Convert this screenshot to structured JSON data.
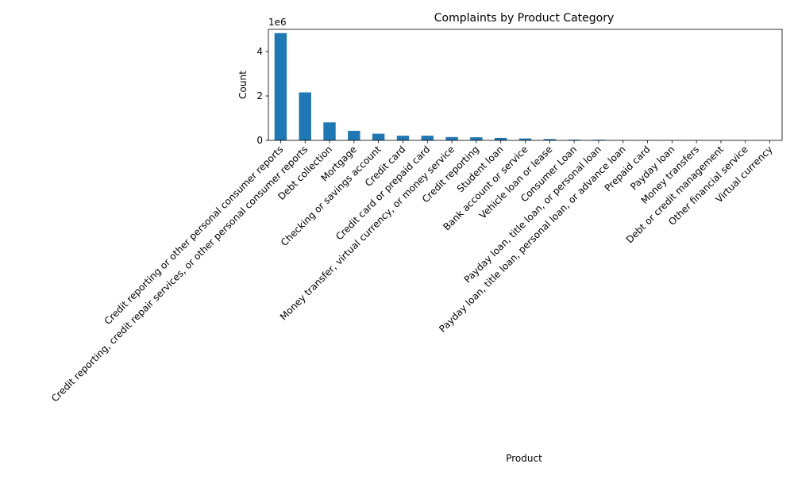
{
  "chart_data": {
    "type": "bar",
    "title": "Complaints by Product Category",
    "xlabel": "Product",
    "ylabel": "Count",
    "y_multiplier_label": "1e6",
    "ylim": [
      0,
      5000000
    ],
    "yticks": [
      0,
      2000000,
      4000000
    ],
    "ytick_labels": [
      "0",
      "2",
      "4"
    ],
    "grid": false,
    "legend": "none",
    "bar_color": "#1f77b4",
    "categories": [
      "Credit reporting or other personal consumer reports",
      "Credit reporting, credit repair services, or other personal consumer reports",
      "Debt collection",
      "Mortgage",
      "Checking or savings account",
      "Credit card",
      "Credit card or prepaid card",
      "Money transfer, virtual currency, or money service",
      "Credit reporting",
      "Student loan",
      "Bank account or service",
      "Vehicle loan or lease",
      "Consumer Loan",
      "Payday loan, title loan, or personal loan",
      "Payday loan, title loan, personal loan, or advance loan",
      "Prepaid card",
      "Payday loan",
      "Money transfers",
      "Debt or credit management",
      "Other financial service",
      "Virtual currency"
    ],
    "values": [
      4830000,
      2160000,
      810000,
      430000,
      300000,
      210000,
      210000,
      150000,
      140000,
      110000,
      86000,
      60000,
      32000,
      30000,
      14000,
      11000,
      5500,
      5400,
      1500,
      1000,
      16
    ]
  }
}
